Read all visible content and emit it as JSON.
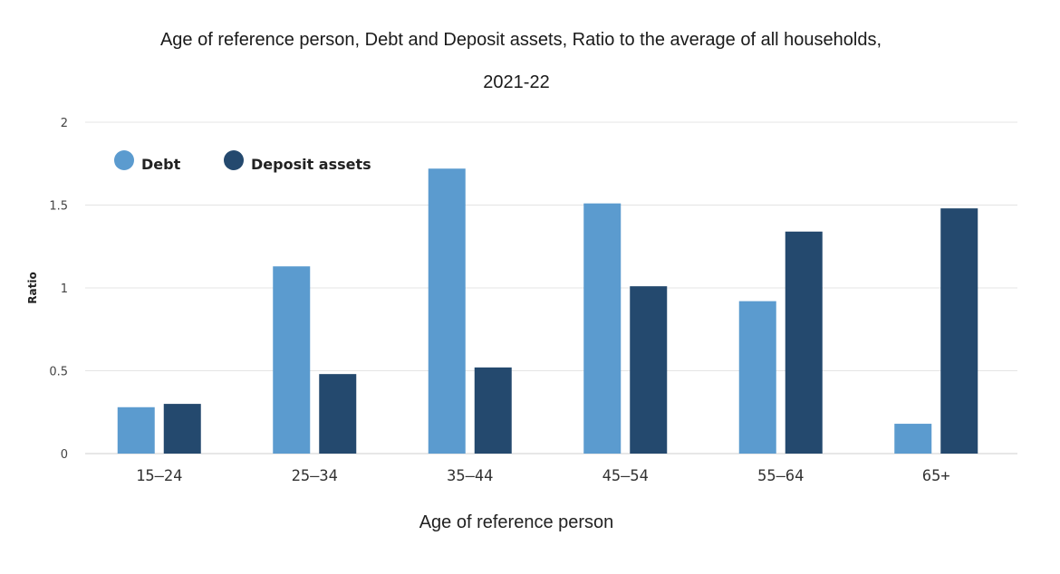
{
  "chart_data": {
    "type": "bar",
    "title": "Age of reference person, Debt and Deposit assets, Ratio to the average of all households,",
    "subtitle": "2021-22",
    "xlabel": "Age of reference person",
    "ylabel": "Ratio",
    "categories": [
      "15–24",
      "25–34",
      "35–44",
      "45–54",
      "55–64",
      "65+"
    ],
    "ylim": [
      0,
      2
    ],
    "yticks": [
      "0",
      "0.5",
      "1",
      "1.5",
      "2"
    ],
    "grid": true,
    "legend_position": "top-left",
    "series": [
      {
        "name": "Debt",
        "color": "#5b9bcf",
        "values": [
          0.28,
          1.13,
          1.72,
          1.51,
          0.92,
          0.18
        ]
      },
      {
        "name": "Deposit assets",
        "color": "#24496e",
        "values": [
          0.3,
          0.48,
          0.52,
          1.01,
          1.34,
          1.48
        ]
      }
    ]
  }
}
